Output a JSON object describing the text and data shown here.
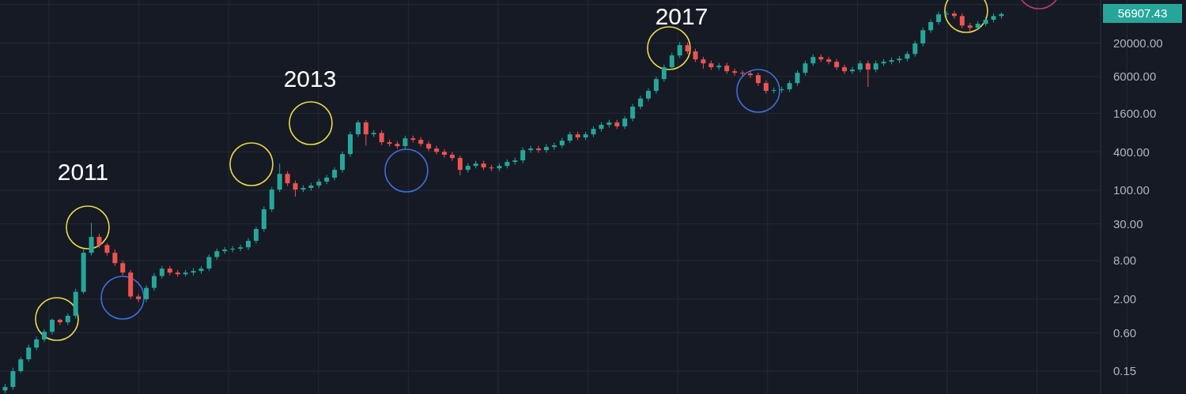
{
  "chart_data": {
    "type": "candlestick",
    "log": true,
    "grid": true,
    "tick_labels": "y",
    "ylim": [
      0.066,
      94000
    ],
    "yticks": [
      {
        "value": 0.15,
        "label": "0.15"
      },
      {
        "value": 0.6,
        "label": "0.60"
      },
      {
        "value": 2,
        "label": "2.00"
      },
      {
        "value": 8,
        "label": "8.00"
      },
      {
        "value": 30,
        "label": "30.00"
      },
      {
        "value": 100,
        "label": "100.00"
      },
      {
        "value": 400,
        "label": "400.00"
      },
      {
        "value": 1600,
        "label": "1600.00"
      },
      {
        "value": 6000,
        "label": "6000.00"
      },
      {
        "value": 20000,
        "label": "20000.00"
      },
      {
        "value": 80000,
        "label": null
      }
    ],
    "annotations": [
      "2011",
      "2013",
      "2017",
      "56907.43"
    ],
    "categories": [
      null,
      null,
      null,
      null,
      null,
      null,
      null,
      null,
      null,
      null,
      null,
      null,
      null,
      null,
      null,
      null,
      null,
      null,
      null,
      null,
      null,
      null,
      null,
      null,
      null,
      null,
      null,
      null,
      null,
      null,
      null,
      null,
      null,
      null,
      null,
      null,
      null,
      null,
      null,
      null,
      null,
      null,
      null,
      null,
      null,
      null,
      null,
      null,
      null,
      null,
      null,
      null,
      null,
      null,
      null,
      null,
      null,
      null,
      null,
      null,
      null,
      null,
      null,
      null,
      null,
      null,
      null,
      null,
      null,
      null,
      null,
      null,
      null,
      null,
      null,
      null,
      null,
      null,
      null,
      null,
      null,
      null,
      null,
      null,
      null,
      null,
      null,
      null,
      null,
      null,
      null,
      null,
      null,
      null,
      null,
      null,
      null,
      null,
      null,
      null,
      null,
      null,
      null,
      null,
      null,
      null,
      null,
      null,
      null,
      null,
      null,
      null,
      null,
      null,
      null,
      null,
      null,
      null,
      null,
      null,
      null,
      null,
      null,
      null,
      null,
      null,
      null,
      null,
      null,
      null,
      null,
      null,
      null,
      null,
      null,
      null,
      null,
      null,
      null,
      null
    ],
    "ohlc": [
      [
        0.075,
        0.095,
        0.068,
        0.085
      ],
      [
        0.085,
        0.17,
        0.077,
        0.15
      ],
      [
        0.15,
        0.25,
        0.14,
        0.23
      ],
      [
        0.23,
        0.39,
        0.21,
        0.35
      ],
      [
        0.35,
        0.52,
        0.32,
        0.47
      ],
      [
        0.47,
        0.68,
        0.43,
        0.62
      ],
      [
        0.62,
        1.0,
        0.56,
        0.95
      ],
      [
        0.95,
        1.0,
        0.79,
        0.87
      ],
      [
        0.87,
        1.2,
        0.79,
        1.1
      ],
      [
        1.1,
        2.9,
        1.0,
        2.6
      ],
      [
        2.6,
        12,
        2.4,
        10.6
      ],
      [
        10.6,
        31,
        9.6,
        18.8
      ],
      [
        18.8,
        21,
        12.7,
        14
      ],
      [
        14,
        15,
        9.6,
        10.6
      ],
      [
        10.6,
        12,
        6.6,
        7.3
      ],
      [
        7.3,
        8.0,
        4.7,
        5.2
      ],
      [
        5.2,
        5.7,
        2.0,
        2.2
      ],
      [
        2.2,
        2.4,
        1.8,
        2.0
      ],
      [
        2.0,
        3.3,
        1.8,
        3.0
      ],
      [
        3.0,
        5.1,
        2.7,
        4.6
      ],
      [
        4.6,
        6.6,
        4.2,
        6.0
      ],
      [
        6.0,
        6.6,
        4.7,
        5.2
      ],
      [
        5.2,
        5.7,
        4.5,
        4.9
      ],
      [
        4.9,
        5.7,
        4.5,
        5.2
      ],
      [
        5.2,
        6.1,
        4.7,
        5.5
      ],
      [
        5.5,
        6.6,
        5.0,
        6.0
      ],
      [
        6.0,
        10,
        5.5,
        9.1
      ],
      [
        9.1,
        12.3,
        8.3,
        11.2
      ],
      [
        11.2,
        13,
        10.2,
        11.9
      ],
      [
        11.9,
        13.5,
        10.8,
        12.3
      ],
      [
        12.3,
        14.2,
        11.2,
        12.9
      ],
      [
        12.9,
        18,
        11.7,
        16.3
      ],
      [
        16.3,
        27,
        14.8,
        24.9
      ],
      [
        24.9,
        56,
        22.6,
        50.6
      ],
      [
        50.6,
        113,
        46,
        103
      ],
      [
        103,
        262,
        94,
        181
      ],
      [
        181,
        199,
        117,
        129
      ],
      [
        129,
        142,
        80,
        103
      ],
      [
        103,
        120,
        94,
        109
      ],
      [
        109,
        131,
        99,
        119
      ],
      [
        119,
        151,
        108,
        137
      ],
      [
        137,
        174,
        125,
        158
      ],
      [
        158,
        230,
        144,
        209
      ],
      [
        209,
        406,
        190,
        369
      ],
      [
        369,
        825,
        335,
        750
      ],
      [
        750,
        1250,
        680,
        1150
      ],
      [
        1150,
        1250,
        500,
        750
      ],
      [
        750,
        870,
        680,
        790
      ],
      [
        790,
        870,
        510,
        565
      ],
      [
        565,
        620,
        485,
        533
      ],
      [
        533,
        590,
        445,
        490
      ],
      [
        490,
        715,
        445,
        650
      ],
      [
        650,
        715,
        560,
        615
      ],
      [
        615,
        680,
        485,
        533
      ],
      [
        533,
        590,
        410,
        450
      ],
      [
        450,
        495,
        365,
        400
      ],
      [
        400,
        440,
        325,
        360
      ],
      [
        360,
        395,
        290,
        320
      ],
      [
        320,
        350,
        171,
        209
      ],
      [
        209,
        265,
        190,
        241
      ],
      [
        241,
        290,
        220,
        262
      ],
      [
        262,
        290,
        207,
        228
      ],
      [
        228,
        250,
        200,
        221
      ],
      [
        221,
        265,
        200,
        241
      ],
      [
        241,
        305,
        220,
        278
      ],
      [
        278,
        325,
        250,
        294
      ],
      [
        294,
        470,
        265,
        425
      ],
      [
        425,
        495,
        385,
        450
      ],
      [
        450,
        495,
        385,
        425
      ],
      [
        425,
        525,
        385,
        476
      ],
      [
        476,
        555,
        430,
        505
      ],
      [
        505,
        660,
        460,
        598
      ],
      [
        598,
        825,
        545,
        750
      ],
      [
        750,
        825,
        610,
        670
      ],
      [
        670,
        825,
        610,
        750
      ],
      [
        750,
        1000,
        680,
        912
      ],
      [
        912,
        1160,
        830,
        1055
      ],
      [
        1055,
        1265,
        960,
        1150
      ],
      [
        1150,
        1265,
        910,
        1000
      ],
      [
        1000,
        1460,
        910,
        1325
      ],
      [
        1325,
        2230,
        1200,
        2030
      ],
      [
        2030,
        3000,
        1850,
        2720
      ],
      [
        2720,
        3940,
        2470,
        3580
      ],
      [
        3580,
        6000,
        3250,
        5470
      ],
      [
        5470,
        9200,
        4970,
        8380
      ],
      [
        8380,
        14100,
        7600,
        12800
      ],
      [
        12800,
        20800,
        11600,
        18600
      ],
      [
        18600,
        20500,
        13500,
        14800
      ],
      [
        14800,
        16300,
        10100,
        11100
      ],
      [
        11100,
        12200,
        8000,
        9630
      ],
      [
        9630,
        10600,
        7600,
        8380
      ],
      [
        8380,
        9800,
        7600,
        8870
      ],
      [
        8870,
        9800,
        6600,
        7260
      ],
      [
        7260,
        8000,
        6200,
        6860
      ],
      [
        6860,
        7500,
        6100,
        6670
      ],
      [
        6670,
        7300,
        5700,
        6300
      ],
      [
        6300,
        6900,
        4300,
        4740
      ],
      [
        4740,
        5200,
        3250,
        3580
      ],
      [
        3580,
        4050,
        3250,
        3680
      ],
      [
        3680,
        4170,
        3350,
        3790
      ],
      [
        3790,
        5200,
        3450,
        4740
      ],
      [
        4740,
        7500,
        4300,
        6860
      ],
      [
        6860,
        10600,
        6200,
        9630
      ],
      [
        9630,
        13300,
        8750,
        12100
      ],
      [
        12100,
        13300,
        10100,
        11100
      ],
      [
        11100,
        12200,
        9300,
        10200
      ],
      [
        10200,
        11200,
        7600,
        8380
      ],
      [
        8380,
        9200,
        6600,
        7260
      ],
      [
        7260,
        8500,
        6600,
        7700
      ],
      [
        7700,
        10600,
        7000,
        9630
      ],
      [
        9630,
        10600,
        4120,
        7700
      ],
      [
        7700,
        10600,
        7000,
        9630
      ],
      [
        9630,
        11200,
        8750,
        10200
      ],
      [
        10200,
        11900,
        9300,
        10800
      ],
      [
        10800,
        12500,
        9800,
        11400
      ],
      [
        11400,
        14900,
        10400,
        13500
      ],
      [
        13500,
        21700,
        12300,
        19700
      ],
      [
        19700,
        34900,
        17900,
        31700
      ],
      [
        31700,
        46800,
        28800,
        42500
      ],
      [
        42500,
        61700,
        38600,
        56100
      ],
      [
        56100,
        63600,
        51000,
        57800
      ],
      [
        57800,
        63600,
        48000,
        52800
      ],
      [
        52800,
        58000,
        34100,
        37500
      ],
      [
        37500,
        41300,
        30000,
        34600
      ],
      [
        34600,
        44000,
        31500,
        40000
      ],
      [
        40000,
        50800,
        36400,
        46200
      ],
      [
        46200,
        58100,
        42000,
        52800
      ],
      [
        52800,
        60000,
        48000,
        56907.43
      ],
      null,
      null,
      null,
      null,
      null,
      null,
      null,
      null,
      null,
      null,
      null,
      null
    ]
  }
}
